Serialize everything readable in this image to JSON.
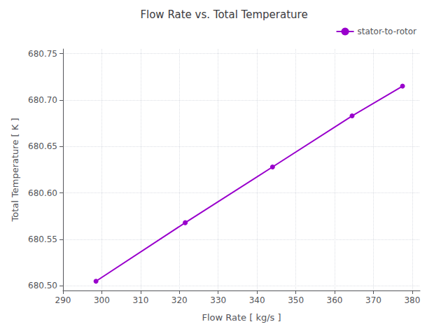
{
  "chart_data": {
    "type": "line",
    "title": "Flow Rate vs. Total Temperature",
    "xlabel": "Flow Rate [ kg/s ]",
    "ylabel": "Total Temperature [ K ]",
    "x": [
      298.5,
      321.5,
      344.0,
      364.5,
      377.5
    ],
    "series": [
      {
        "name": "stator-to-rotor",
        "color": "#9900CC",
        "marker": "circle",
        "line_style": "solid",
        "values": [
          680.505,
          680.568,
          680.628,
          680.683,
          680.715
        ]
      }
    ],
    "xlim": [
      290,
      382
    ],
    "ylim": [
      680.495,
      680.755
    ],
    "xticks": [
      290,
      300,
      310,
      320,
      330,
      340,
      350,
      360,
      370,
      380
    ],
    "yticks": [
      {
        "value": 680.5,
        "label": "680.50"
      },
      680.55,
      {
        "value": 680.6,
        "label": "680.60"
      },
      680.65,
      {
        "value": 680.7,
        "label": "680.70"
      },
      680.75
    ],
    "grid": true,
    "legend": "upper right"
  }
}
